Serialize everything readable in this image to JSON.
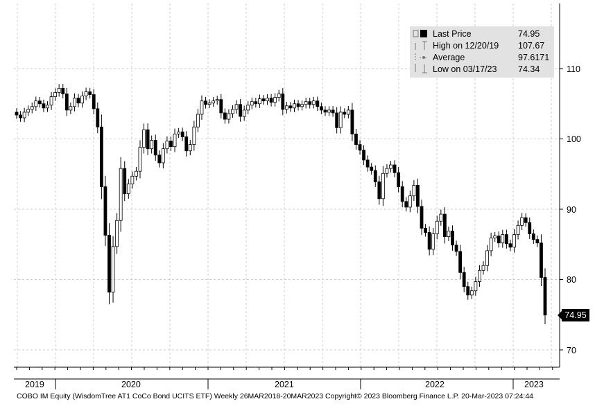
{
  "legend": {
    "last_price_label": "Last Price",
    "last_price_value": "74.95",
    "high_label": "High on 12/20/19",
    "high_value": "107.67",
    "average_label": "Average",
    "average_value": "97.6171",
    "low_label": "Low on 03/17/23",
    "low_value": "74.34"
  },
  "last_badge": "74.95",
  "footer": "COBO IM Equity (WisdomTree AT1 CoCo Bond UCITS ETF)  Weekly 26MAR2018-20MAR2023   Copyright© 2023 Bloomberg Finance L.P.  20-Mar-2023 07:24:44",
  "colors": {
    "background": "#ffffff",
    "candle": "#000000",
    "legend_bg": "#e2e2e2",
    "grid": "#cccccc"
  },
  "chart_data": {
    "type": "candlestick",
    "x_axis_labels": [
      "2019",
      "2020",
      "2021",
      "2022",
      "2023"
    ],
    "y_ticks": [
      70,
      80,
      90,
      100,
      110
    ],
    "y_tick_labels": [
      "70",
      "80",
      "90",
      "100",
      "110"
    ],
    "ylim": [
      68,
      118
    ],
    "grid": true,
    "legend_position": "top-right",
    "close_series": [
      103.4,
      103.0,
      103.8,
      104.2,
      104.6,
      105.4,
      105.0,
      104.4,
      104.8,
      106.0,
      106.6,
      107.2,
      106.4,
      104.1,
      104.6,
      105.8,
      105.1,
      106.1,
      106.7,
      106.3,
      104.3,
      101.7,
      93.2,
      86.3,
      78.2,
      84.7,
      88.4,
      95.8,
      92.2,
      93.6,
      94.7,
      95.4,
      98.8,
      101.3,
      98.6,
      99.8,
      97.7,
      96.6,
      98.6,
      99.7,
      98.9,
      100.7,
      101.0,
      100.3,
      98.3,
      99.2,
      101.7,
      103.5,
      105.4,
      104.9,
      105.1,
      105.4,
      105.6,
      103.7,
      102.8,
      103.6,
      104.2,
      104.9,
      103.2,
      104.1,
      104.8,
      105.3,
      105.0,
      105.7,
      105.4,
      105.8,
      105.2,
      105.9,
      106.4,
      104.2,
      104.7,
      104.4,
      105.0,
      104.6,
      104.9,
      105.3,
      104.9,
      105.4,
      104.6,
      104.1,
      103.8,
      104.1,
      103.7,
      101.6,
      103.8,
      103.5,
      104.1,
      100.7,
      99.2,
      98.4,
      97.0,
      96.0,
      95.5,
      93.9,
      91.5,
      95.1,
      95.8,
      96.3,
      95.2,
      93.2,
      91.1,
      90.3,
      91.9,
      93.4,
      90.4,
      87.3,
      86.7,
      84.3,
      86.5,
      88.3,
      89.3,
      86.1,
      86.9,
      84.9,
      84.0,
      81.0,
      79.0,
      77.8,
      78.4,
      79.7,
      81.3,
      82.0,
      84.1,
      85.9,
      86.2,
      85.2,
      86.4,
      85.1,
      84.6,
      86.4,
      87.7,
      88.8,
      88.1,
      86.5,
      85.7,
      85.2,
      80.3,
      74.95
    ]
  }
}
